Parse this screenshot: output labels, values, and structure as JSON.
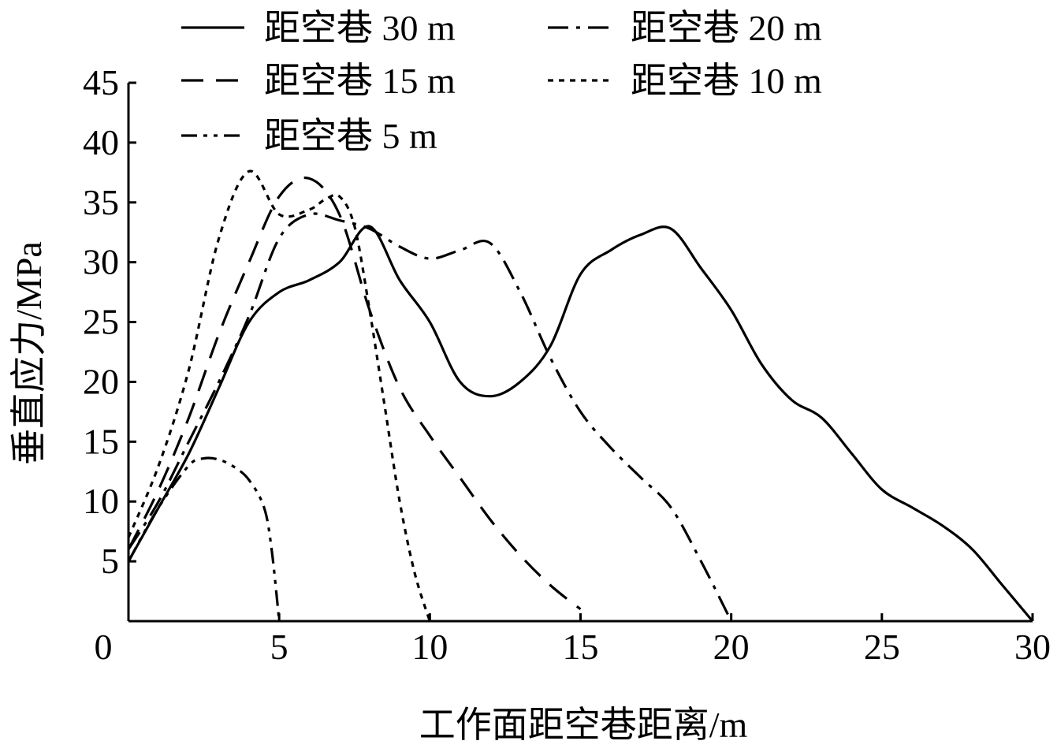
{
  "chart_data": {
    "type": "line",
    "xlabel": "工作面距空巷距离/m",
    "ylabel": "垂直应力/MPa",
    "xlim": [
      0,
      30
    ],
    "ylim": [
      0,
      45
    ],
    "xticks": [
      0,
      5,
      10,
      15,
      20,
      25,
      30
    ],
    "yticks": [
      5,
      10,
      15,
      20,
      25,
      30,
      35,
      40,
      45
    ],
    "grid": false,
    "legend_position": "top",
    "series": [
      {
        "name": "距空巷 30 m",
        "style": "solid",
        "x": [
          0,
          1,
          2,
          3,
          4,
          5,
          6,
          7,
          8,
          9,
          10,
          11,
          12,
          13,
          14,
          15,
          16,
          17,
          18,
          19,
          20,
          21,
          22,
          23,
          24,
          25,
          26,
          27,
          28,
          29,
          30
        ],
        "y": [
          5,
          9.5,
          14,
          19.5,
          25,
          27.5,
          28.5,
          30,
          33,
          28.5,
          25,
          20,
          18.8,
          20,
          23,
          29,
          31,
          32.3,
          32.8,
          29.5,
          26,
          21.5,
          18.5,
          17,
          14,
          11,
          9.5,
          8,
          6,
          3,
          0
        ]
      },
      {
        "name": "距空巷 20 m",
        "style": "dash-dot",
        "x": [
          0,
          1,
          2,
          3,
          4,
          5,
          6,
          7,
          8,
          9,
          10,
          11,
          12,
          13,
          14,
          15,
          16,
          17,
          18,
          19,
          20
        ],
        "y": [
          6,
          10,
          15,
          20,
          25.5,
          32,
          34,
          33.5,
          32.8,
          31.3,
          30.3,
          31,
          31.6,
          27.5,
          22,
          17.5,
          14.5,
          12,
          9.5,
          5,
          0
        ]
      },
      {
        "name": "距空巷 15 m",
        "style": "dashed",
        "x": [
          0,
          1,
          2,
          3,
          4,
          5,
          6,
          7,
          8,
          9,
          10,
          11,
          12,
          13,
          14,
          15
        ],
        "y": [
          6,
          11,
          17,
          24,
          30,
          35.5,
          37,
          34,
          26,
          19.5,
          15.5,
          12,
          8.5,
          5.5,
          3,
          1
        ]
      },
      {
        "name": "距空巷 10 m",
        "style": "dotted",
        "x": [
          0,
          1,
          2,
          3,
          4,
          5,
          6,
          6.5,
          7,
          7.5,
          8,
          8.5,
          9,
          9.5,
          10
        ],
        "y": [
          7,
          13,
          21,
          32,
          37.6,
          34,
          34.4,
          35.2,
          35.5,
          33,
          26,
          18,
          10,
          4,
          0
        ]
      },
      {
        "name": "距空巷 5 m",
        "style": "dash-dot-dot",
        "x": [
          0,
          1,
          2,
          2.5,
          3,
          3.5,
          4,
          4.5,
          4.75,
          5
        ],
        "y": [
          5,
          9.5,
          13,
          13.6,
          13.5,
          12.9,
          11.8,
          9.5,
          6,
          0
        ]
      }
    ]
  }
}
